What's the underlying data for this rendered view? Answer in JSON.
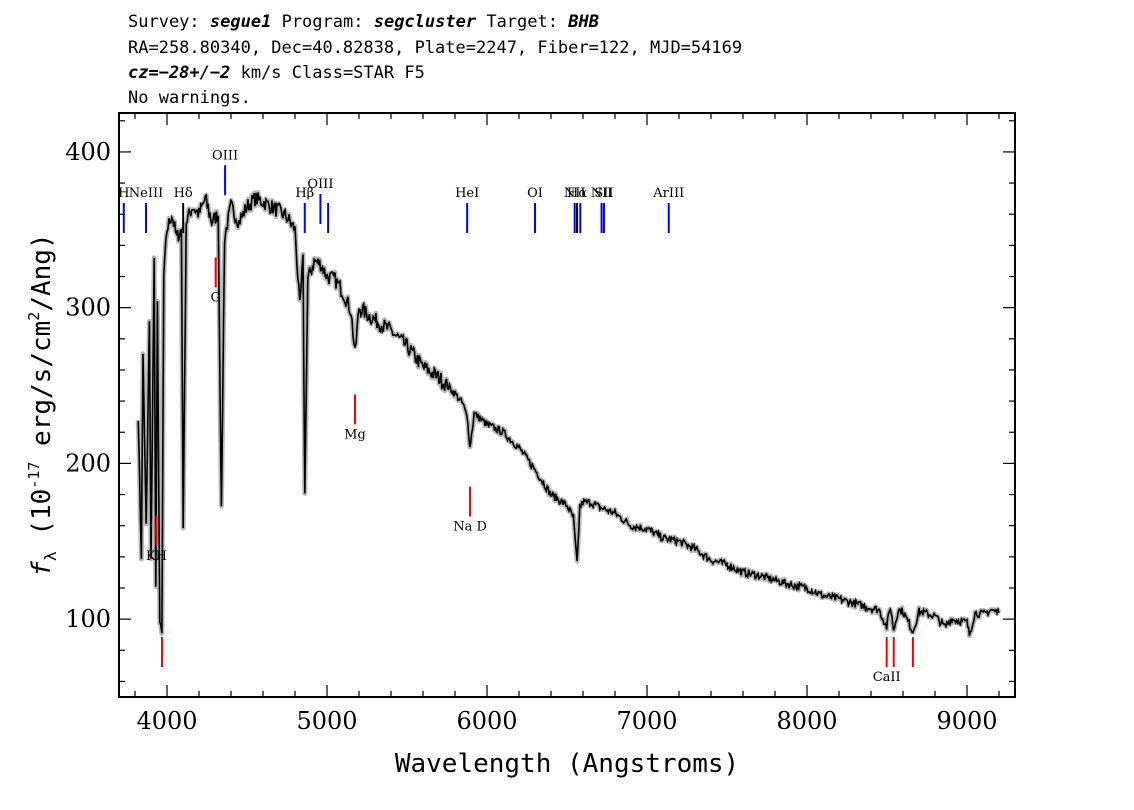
{
  "header": {
    "survey_label": "Survey:",
    "survey": "segue1",
    "program_label": "Program:",
    "program": "segcluster",
    "target_label": "Target:",
    "target": "BHB",
    "line2": "RA=258.80340, Dec=40.82838, Plate=2247, Fiber=122, MJD=54169",
    "cz": "cz=−28+/−2",
    "line3_rest": " km/s Class=STAR F5",
    "line4": "No warnings."
  },
  "chart_data": {
    "type": "line",
    "xlabel": "Wavelength (Angstroms)",
    "ylabel": "f_λ (10^-17 erg/s/cm^2/Ang)",
    "xlim": [
      3700,
      9300
    ],
    "ylim": [
      50,
      425
    ],
    "xticks": [
      4000,
      5000,
      6000,
      7000,
      8000,
      9000
    ],
    "yticks": [
      100,
      200,
      300,
      400
    ],
    "series": [
      {
        "x": [
          3820,
          3840,
          3850,
          3870,
          3890,
          3900,
          3920,
          3930,
          3940,
          3955,
          3968,
          3980,
          4000,
          4030,
          4060,
          4090,
          4101,
          4120,
          4160,
          4200,
          4240,
          4280,
          4320,
          4340,
          4360,
          4400,
          4450,
          4500,
          4550,
          4600,
          4650,
          4700,
          4750,
          4800,
          4830,
          4850,
          4861,
          4880,
          4920,
          4960,
          5000,
          5050,
          5100,
          5150,
          5175,
          5200,
          5300,
          5400,
          5500,
          5600,
          5700,
          5800,
          5850,
          5880,
          5893,
          5920,
          6000,
          6100,
          6200,
          6300,
          6400,
          6500,
          6540,
          6563,
          6580,
          6600,
          6650,
          6700,
          6800,
          6900,
          7000,
          7100,
          7200,
          7300,
          7400,
          7500,
          7600,
          7700,
          7800,
          7900,
          8000,
          8100,
          8200,
          8300,
          8400,
          8450,
          8498,
          8520,
          8542,
          8570,
          8600,
          8662,
          8700,
          8800,
          8862,
          8900,
          9000,
          9015,
          9050,
          9100,
          9150,
          9200
        ],
        "y": [
          230,
          140,
          270,
          160,
          290,
          140,
          330,
          120,
          300,
          98,
          90,
          320,
          350,
          360,
          345,
          350,
          160,
          355,
          365,
          360,
          370,
          355,
          360,
          170,
          345,
          365,
          355,
          365,
          370,
          368,
          365,
          362,
          358,
          350,
          300,
          330,
          180,
          318,
          330,
          328,
          320,
          318,
          310,
          298,
          270,
          300,
          292,
          285,
          275,
          262,
          255,
          245,
          238,
          228,
          210,
          232,
          225,
          220,
          210,
          196,
          180,
          173,
          165,
          135,
          172,
          175,
          175,
          172,
          168,
          160,
          158,
          152,
          150,
          145,
          138,
          135,
          130,
          128,
          125,
          122,
          120,
          115,
          113,
          110,
          107,
          106,
          95,
          108,
          93,
          106,
          105,
          92,
          105,
          102,
          95,
          100,
          98,
          90,
          104,
          103,
          106,
          104
        ]
      }
    ],
    "lines": [
      {
        "label": "H",
        "x": 3730,
        "color": "#0000ff",
        "pos": "above"
      },
      {
        "label": "NeIII",
        "x": 3869,
        "color": "#0000ff",
        "pos": "above"
      },
      {
        "label": "Hδ",
        "x": 4101,
        "color": "#000000",
        "pos": "above"
      },
      {
        "label": "OIII",
        "x": 4363,
        "color": "#0000ff",
        "pos": "above"
      },
      {
        "label": "Hβ",
        "x": 4861,
        "color": "#0000ff",
        "pos": "above"
      },
      {
        "label": "OIII",
        "x": 4959,
        "color": "#0000ff",
        "pos": "above"
      },
      {
        "label": "",
        "x": 5007,
        "color": "#0000ff",
        "pos": "above"
      },
      {
        "label": "HeI",
        "x": 5876,
        "color": "#0000ff",
        "pos": "above"
      },
      {
        "label": "OI",
        "x": 6300,
        "color": "#0000ff",
        "pos": "above"
      },
      {
        "label": "NII",
        "x": 6548,
        "color": "#0000ff",
        "pos": "above"
      },
      {
        "label": "Hα",
        "x": 6563,
        "color": "#000000",
        "pos": "above"
      },
      {
        "label": "",
        "x": 6583,
        "color": "#0000ff",
        "pos": "above"
      },
      {
        "label": "NII",
        "x": 6716,
        "color": "#0000ff",
        "pos": "above"
      },
      {
        "label": "SII",
        "x": 6731,
        "color": "#0000ff",
        "pos": "above"
      },
      {
        "label": "ArIII",
        "x": 7136,
        "color": "#0000ff",
        "pos": "above"
      },
      {
        "label": "KH",
        "x": 3934,
        "color": "#ff0000",
        "pos": "below"
      },
      {
        "label": "",
        "x": 3969,
        "color": "#ff0000",
        "pos": "below"
      },
      {
        "label": "G",
        "x": 4304,
        "color": "#ff0000",
        "pos": "below"
      },
      {
        "label": "Mg",
        "x": 5175,
        "color": "#ff0000",
        "pos": "below"
      },
      {
        "label": "Na D",
        "x": 5894,
        "color": "#ff0000",
        "pos": "below"
      },
      {
        "label": "CaII",
        "x": 8498,
        "color": "#ff0000",
        "pos": "below"
      },
      {
        "label": "",
        "x": 8542,
        "color": "#ff0000",
        "pos": "below"
      },
      {
        "label": "",
        "x": 8662,
        "color": "#ff0000",
        "pos": "below"
      }
    ]
  }
}
